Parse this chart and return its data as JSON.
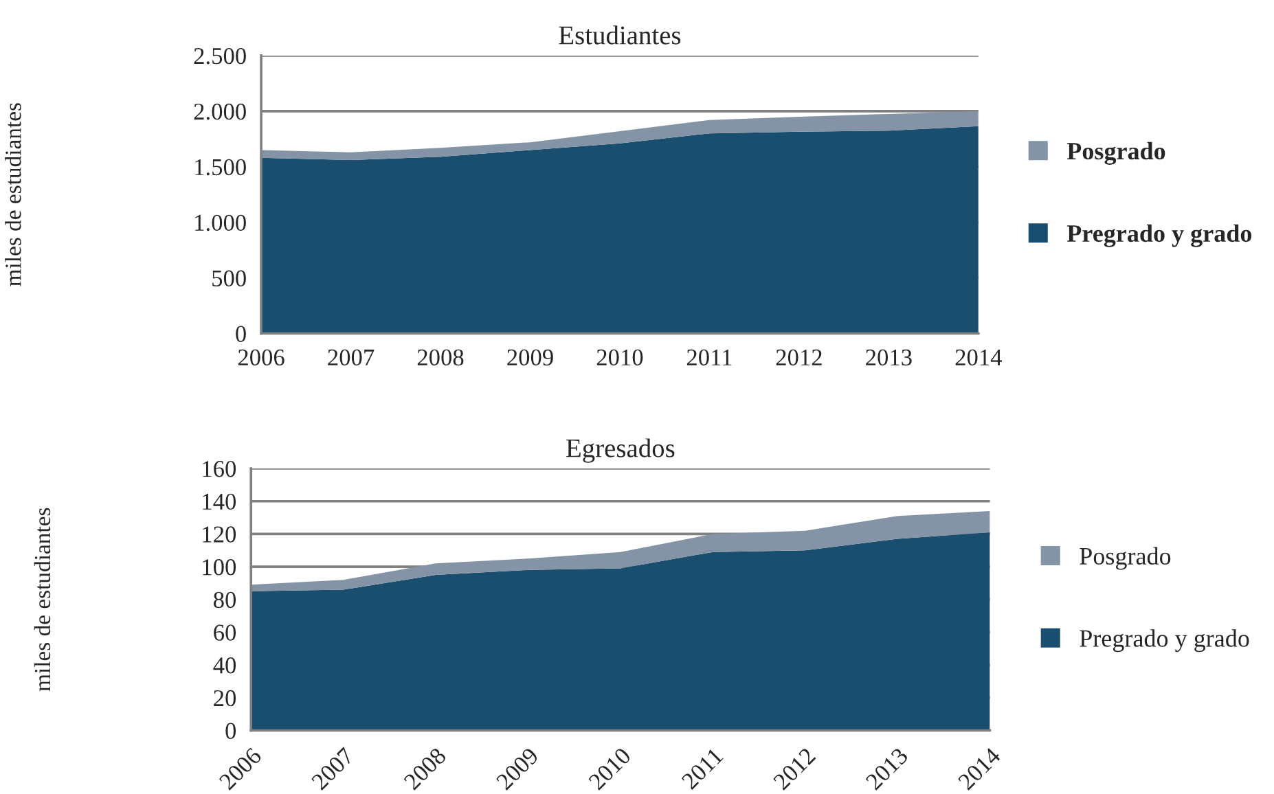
{
  "chart_data": [
    {
      "type": "area",
      "stacked": true,
      "title": "Estudiantes",
      "ylabel": "miles de estudiantes",
      "categories": [
        "2006",
        "2007",
        "2008",
        "2009",
        "2010",
        "2011",
        "2012",
        "2013",
        "2014"
      ],
      "series": [
        {
          "name": "Pregrado y grado",
          "color": "#1a4e6e",
          "values": [
            1580,
            1560,
            1590,
            1650,
            1710,
            1800,
            1815,
            1825,
            1865
          ]
        },
        {
          "name": "Posgrado",
          "color": "#8494a6",
          "values": [
            70,
            70,
            80,
            70,
            110,
            120,
            135,
            150,
            135
          ]
        }
      ],
      "ylim": [
        0,
        2500
      ],
      "yticks": [
        {
          "value": 0,
          "label": "0"
        },
        {
          "value": 500,
          "label": "500"
        },
        {
          "value": 1000,
          "label": "1.000"
        },
        {
          "value": 1500,
          "label": "1.500"
        },
        {
          "value": 2000,
          "label": "2.000"
        },
        {
          "value": 2500,
          "label": "2.500"
        }
      ],
      "grid": "y",
      "legend": "right"
    },
    {
      "type": "area",
      "stacked": true,
      "title": "Egresados",
      "ylabel": "miles de estudiantes",
      "categories": [
        "2006",
        "2007",
        "2008",
        "2009",
        "2010",
        "2011",
        "2012",
        "2013",
        "2014"
      ],
      "series": [
        {
          "name": "Pregrado y grado",
          "color": "#1a4e6e",
          "values": [
            85,
            86,
            95,
            98,
            99,
            109,
            110,
            117,
            121
          ]
        },
        {
          "name": "Posgrado",
          "color": "#8494a6",
          "values": [
            4,
            6,
            7,
            7,
            10,
            11,
            12,
            14,
            13
          ]
        }
      ],
      "ylim": [
        0,
        160
      ],
      "yticks": [
        0,
        20,
        40,
        60,
        80,
        100,
        120,
        140,
        160
      ],
      "grid": "y",
      "legend": "right"
    }
  ]
}
